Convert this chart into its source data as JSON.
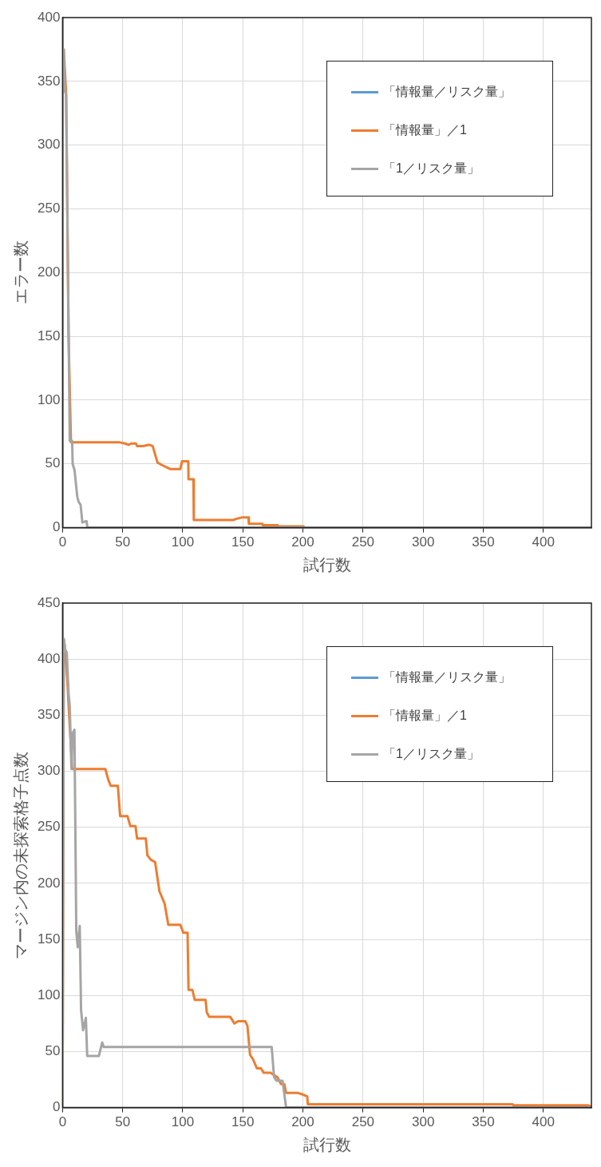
{
  "chart_data": [
    {
      "type": "line",
      "xlabel": "試行数",
      "ylabel": "エラー数",
      "xlim": [
        0,
        440
      ],
      "xticks": [
        0,
        50,
        100,
        150,
        200,
        250,
        300,
        350,
        400
      ],
      "ylim": [
        0,
        400
      ],
      "yticks": [
        0,
        50,
        100,
        150,
        200,
        250,
        300,
        350,
        400
      ],
      "grid": true,
      "legend": "top right",
      "marker": "none",
      "line_style": "solid",
      "series": [
        {
          "name": "「情報量／リスク量」",
          "color": "#5b9bd5"
        },
        {
          "name": "「情報量」／1",
          "color": "#ed7d31",
          "x": [
            0,
            1,
            3,
            5,
            7,
            47,
            52,
            55,
            57,
            61,
            62,
            67,
            72,
            75,
            79,
            85,
            89.5,
            98,
            99.4,
            104.6,
            104.8,
            108.9,
            109.2,
            142,
            145,
            149,
            154.6,
            155,
            166.3,
            166.5,
            179,
            179.2,
            200.5,
            201,
            440
          ],
          "values": [
            370,
            375,
            340,
            150,
            67,
            67,
            66,
            65,
            66,
            66,
            64,
            64,
            65,
            64,
            51,
            48,
            46,
            46,
            52,
            52,
            38,
            38,
            6,
            6,
            7,
            8,
            8,
            3,
            3,
            2,
            2,
            1,
            1,
            0,
            0
          ]
        },
        {
          "name": "「1／リスク量」",
          "color": "#a5a5a5",
          "x": [
            0,
            1,
            2,
            3,
            6,
            8,
            8.4,
            9,
            10,
            12.3,
            13.5,
            15,
            16.5,
            19.3,
            20,
            20.7,
            440
          ],
          "values": [
            370,
            375,
            342,
            340,
            68,
            68,
            50,
            50,
            45,
            24,
            20,
            18,
            4,
            5,
            5,
            0,
            0
          ]
        }
      ]
    },
    {
      "type": "line",
      "xlabel": "試行数",
      "ylabel": "マージン内の未探索格子点数",
      "xlim": [
        0,
        440
      ],
      "xticks": [
        0,
        50,
        100,
        150,
        200,
        250,
        300,
        350,
        400
      ],
      "ylim": [
        0,
        450
      ],
      "yticks": [
        0,
        50,
        100,
        150,
        200,
        250,
        300,
        350,
        400,
        450
      ],
      "grid": true,
      "legend": "top right",
      "marker": "none",
      "line_style": "solid",
      "series": [
        {
          "name": "「情報量／リスク量」",
          "color": "#5b9bd5"
        },
        {
          "name": "「情報量」／1",
          "color": "#ed7d31",
          "x": [
            0,
            1,
            2.3,
            4,
            6,
            8,
            35.6,
            37.9,
            40,
            46,
            47.9,
            54,
            56.4,
            60.7,
            62,
            69.3,
            70.6,
            73.5,
            77,
            80.6,
            84.9,
            88,
            98,
            100.5,
            104,
            104.8,
            108,
            110,
            119,
            120,
            121.9,
            139.5,
            143,
            146,
            152,
            153.8,
            156,
            158.5,
            161.7,
            165.1,
            167.4,
            173,
            178.8,
            181.7,
            184.5,
            186,
            196,
            199,
            203.6,
            204,
            374.5,
            375,
            437,
            440
          ],
          "values": [
            0,
            418,
            408,
            380,
            340,
            302,
            302,
            293,
            287,
            287,
            260,
            260,
            251,
            251,
            240,
            240,
            225,
            221,
            219,
            193,
            182,
            163,
            163,
            156,
            156,
            105,
            105,
            96,
            96,
            85,
            81,
            81,
            75,
            77,
            77,
            73,
            47,
            43,
            35,
            35,
            31,
            31,
            27,
            21,
            21,
            13,
            13,
            12,
            10,
            3,
            3,
            2,
            2,
            1
          ]
        },
        {
          "name": "「1／リスク量」",
          "color": "#a5a5a5",
          "x": [
            0,
            1,
            2.3,
            3.5,
            5,
            6,
            7.4,
            8.4,
            9.9,
            10.9,
            11.4,
            12.6,
            14.3,
            15.4,
            17.1,
            19.4,
            20.5,
            30.2,
            33,
            34.2,
            174,
            176,
            178,
            183,
            186,
            440
          ],
          "values": [
            0,
            418,
            408,
            406,
            370,
            358,
            302,
            334,
            337,
            220,
            158,
            143,
            162,
            87,
            69,
            80,
            46,
            46,
            58,
            54,
            54,
            27,
            24,
            24,
            0,
            0
          ]
        }
      ]
    }
  ]
}
